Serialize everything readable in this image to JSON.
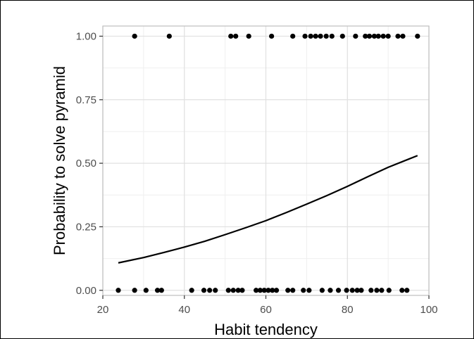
{
  "chart_data": {
    "type": "scatter",
    "title": "",
    "xlabel": "Habit tendency",
    "ylabel": "Probability to solve pyramid",
    "xlim": [
      20,
      100
    ],
    "ylim": [
      -0.02,
      1.04
    ],
    "x_ticks": [
      20,
      40,
      60,
      80,
      100
    ],
    "x_tick_labels": [
      "20",
      "40",
      "60",
      "80",
      "100"
    ],
    "y_ticks": [
      0.0,
      0.25,
      0.5,
      0.75,
      1.0
    ],
    "y_tick_labels": [
      "0.00",
      "0.25",
      "0.50",
      "0.75",
      "1.00"
    ],
    "grid": true,
    "legend": "none",
    "colors": {
      "panel_border": "#bfbfbf",
      "grid_major": "#e0e0e0",
      "grid_minor": "#efefef",
      "points": "#000000",
      "curve": "#000000"
    },
    "series": [
      {
        "kind": "points",
        "x": [
          27.8,
          36.3,
          51.4,
          52.6,
          55.8,
          61.4,
          66.6,
          69.6,
          71.0,
          72.2,
          73.4,
          74.8,
          76.2,
          78.8,
          82.0,
          84.4,
          85.4,
          86.6,
          87.6,
          88.8,
          90.0,
          92.4,
          93.6,
          97.2,
          23.8,
          27.8,
          30.6,
          33.4,
          34.4,
          41.8,
          44.8,
          46.2,
          47.6,
          50.8,
          52.0,
          53.2,
          54.2,
          57.6,
          58.6,
          59.6,
          60.6,
          61.6,
          62.6,
          65.4,
          66.6,
          69.2,
          70.6,
          73.8,
          75.8,
          77.8,
          79.8,
          81.2,
          82.4,
          83.4,
          85.8,
          87.2,
          88.4,
          90.2,
          93.4,
          94.6
        ],
        "y": [
          1,
          1,
          1,
          1,
          1,
          1,
          1,
          1,
          1,
          1,
          1,
          1,
          1,
          1,
          1,
          1,
          1,
          1,
          1,
          1,
          1,
          1,
          1,
          1,
          0,
          0,
          0,
          0,
          0,
          0,
          0,
          0,
          0,
          0,
          0,
          0,
          0,
          0,
          0,
          0,
          0,
          0,
          0,
          0,
          0,
          0,
          0,
          0,
          0,
          0,
          0,
          0,
          0,
          0,
          0,
          0,
          0,
          0,
          0,
          0
        ]
      },
      {
        "kind": "curve",
        "x": [
          23.8,
          30,
          35,
          40,
          45,
          50,
          55,
          60,
          65,
          70,
          75,
          80,
          85,
          90,
          95,
          97.2
        ],
        "y": [
          0.108,
          0.129,
          0.149,
          0.17,
          0.193,
          0.219,
          0.246,
          0.274,
          0.306,
          0.339,
          0.373,
          0.409,
          0.447,
          0.484,
          0.516,
          0.53
        ]
      }
    ]
  }
}
